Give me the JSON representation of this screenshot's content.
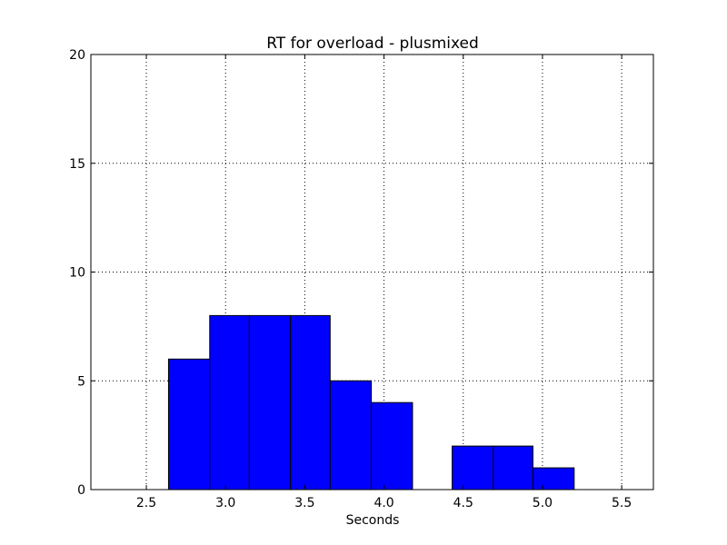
{
  "chart_data": {
    "type": "bar",
    "title": "RT for overload - plusmixed",
    "xlabel": "Seconds",
    "ylabel": "",
    "xlim": [
      2.15,
      5.7
    ],
    "ylim": [
      0,
      20
    ],
    "grid": true,
    "bar_color": "#0000ff",
    "x_ticks": [
      2.5,
      3.0,
      3.5,
      4.0,
      4.5,
      5.0,
      5.5
    ],
    "x_tick_labels": [
      "2.5",
      "3.0",
      "3.5",
      "4.0",
      "4.5",
      "5.0",
      "5.5"
    ],
    "y_ticks": [
      0,
      5,
      10,
      15,
      20
    ],
    "y_tick_labels": [
      "0",
      "5",
      "10",
      "15",
      "20"
    ],
    "bins": [
      {
        "start": 2.64,
        "end": 2.9,
        "count": 6
      },
      {
        "start": 2.9,
        "end": 3.15,
        "count": 8
      },
      {
        "start": 3.15,
        "end": 3.41,
        "count": 8
      },
      {
        "start": 3.41,
        "end": 3.66,
        "count": 8
      },
      {
        "start": 3.66,
        "end": 3.92,
        "count": 5
      },
      {
        "start": 3.92,
        "end": 4.18,
        "count": 4
      },
      {
        "start": 4.18,
        "end": 4.43,
        "count": 0
      },
      {
        "start": 4.43,
        "end": 4.69,
        "count": 2
      },
      {
        "start": 4.69,
        "end": 4.94,
        "count": 2
      },
      {
        "start": 4.94,
        "end": 5.2,
        "count": 1
      }
    ]
  }
}
